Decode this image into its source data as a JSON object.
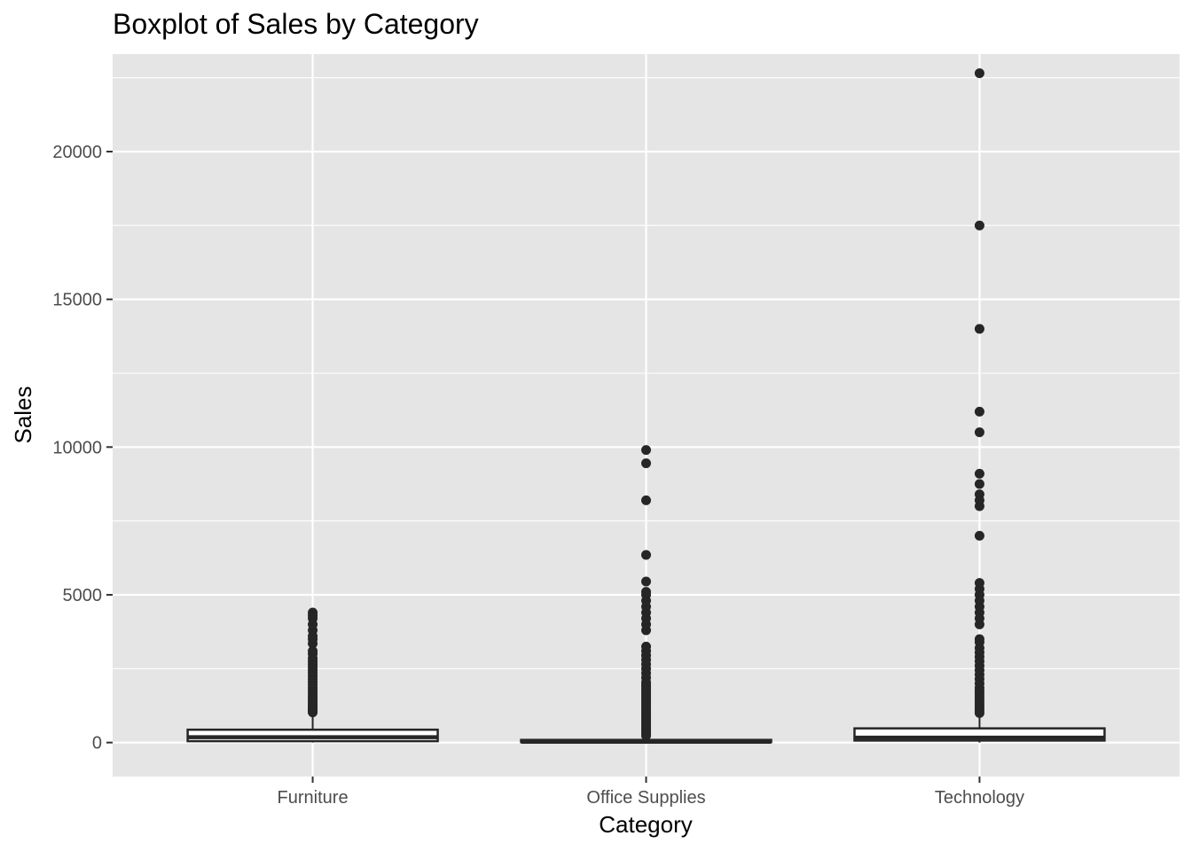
{
  "chart_data": {
    "type": "boxplot",
    "title": "Boxplot of Sales by Category",
    "xlabel": "Category",
    "ylabel": "Sales",
    "categories": [
      "Furniture",
      "Office Supplies",
      "Technology"
    ],
    "ylim": [
      -1150,
      23300
    ],
    "yticks": [
      0,
      5000,
      10000,
      15000,
      20000
    ],
    "ytick_labels": [
      "0",
      "5000",
      "10000",
      "15000",
      "20000"
    ],
    "grid": true,
    "legend": "none",
    "colors": {
      "panel_bg": "#e5e5e5",
      "grid": "#ffffff",
      "box_fill": "#ffffff",
      "box_stroke": "#262626",
      "point": "#262626",
      "tick": "#333333"
    },
    "boxes": [
      {
        "category": "Furniture",
        "min": 1.9,
        "q1": 47,
        "median": 182,
        "q3": 435,
        "whisker_high": 1000,
        "outliers": [
          1020,
          1060,
          1100,
          1150,
          1200,
          1260,
          1320,
          1400,
          1480,
          1560,
          1650,
          1750,
          1850,
          1950,
          2050,
          2150,
          2250,
          2350,
          2450,
          2550,
          2650,
          2750,
          2850,
          3000,
          3100,
          3350,
          3500,
          3600,
          3800,
          4000,
          4200,
          4300,
          4400
        ]
      },
      {
        "category": "Office Supplies",
        "min": 0.4,
        "q1": 17,
        "median": 27,
        "q3": 90,
        "whisker_high": 200,
        "outliers": [
          230,
          300,
          380,
          450,
          520,
          600,
          680,
          760,
          840,
          920,
          1000,
          1080,
          1160,
          1240,
          1320,
          1400,
          1480,
          1560,
          1640,
          1720,
          1800,
          1880,
          1960,
          2040,
          2200,
          2350,
          2500,
          2650,
          2800,
          2950,
          3100,
          3250,
          3800,
          4000,
          4200,
          4400,
          4600,
          4800,
          5000,
          5100,
          5450,
          6350,
          8200,
          9450,
          9900
        ]
      },
      {
        "category": "Technology",
        "min": 0.4,
        "q1": 68,
        "median": 167,
        "q3": 480,
        "whisker_high": 980,
        "outliers": [
          1000,
          1080,
          1160,
          1250,
          1350,
          1450,
          1550,
          1650,
          1750,
          1850,
          2000,
          2150,
          2300,
          2450,
          2600,
          2750,
          2900,
          3050,
          3200,
          3400,
          3500,
          4000,
          4200,
          4400,
          4600,
          4800,
          5000,
          5200,
          5400,
          7000,
          8000,
          8200,
          8400,
          8750,
          9100,
          10500,
          11200,
          14000,
          17500,
          22650
        ]
      }
    ]
  }
}
